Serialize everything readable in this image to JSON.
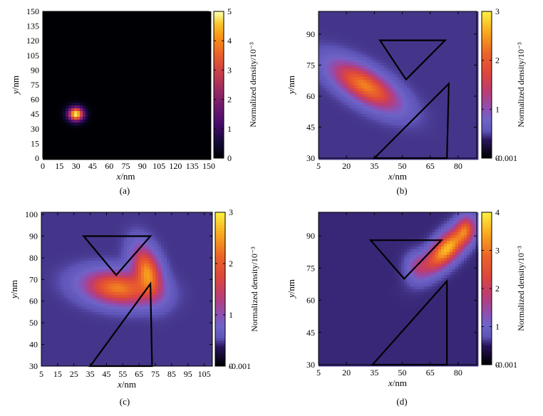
{
  "chart_data": [
    {
      "type": "heatmap",
      "caption": "(a)",
      "xlabel": "x/nm",
      "ylabel": "y/nm",
      "colorbar_label": "Normalized density/10⁻³",
      "xlim": [
        0,
        150
      ],
      "ylim": [
        0,
        150
      ],
      "xticks": [
        "0",
        "15",
        "30",
        "45",
        "60",
        "75",
        "90",
        "105",
        "120",
        "135",
        "150"
      ],
      "yticks": [
        "0",
        "15",
        "30",
        "45",
        "60",
        "75",
        "90",
        "105",
        "120",
        "135",
        "150"
      ],
      "clim": [
        0,
        5
      ],
      "cticks": [
        "0",
        "1",
        "2",
        "3",
        "4",
        "5"
      ],
      "background_value": 0,
      "blobs": [
        {
          "cx": 30,
          "cy": 45,
          "sx": 5,
          "sy": 5,
          "peak": 5
        }
      ],
      "obstacles": []
    },
    {
      "type": "heatmap",
      "caption": "(b)",
      "xlabel": "x/nm",
      "ylabel": "y/nm",
      "colorbar_label": "Normalized density/10⁻³",
      "xlim": [
        5,
        90
      ],
      "ylim": [
        30,
        101
      ],
      "xticks": [
        "5",
        "20",
        "35",
        "50",
        "65",
        "80"
      ],
      "yticks": [
        "30",
        "45",
        "60",
        "75",
        "90"
      ],
      "clim": [
        -0.001,
        3
      ],
      "cticks": [
        "-0.001",
        "0",
        "1",
        "2",
        "3"
      ],
      "background_value": 0.45,
      "blobs": [
        {
          "cx": 30,
          "cy": 65,
          "sx": 13,
          "sy": 5,
          "rot": -28,
          "peak": 1.9
        }
      ],
      "obstacles": [
        {
          "kind": "inverted-triangle",
          "points": [
            [
              38,
              87
            ],
            [
              73,
              87
            ],
            [
              52,
              68
            ]
          ]
        },
        {
          "kind": "wedge",
          "points": [
            [
              35,
              30
            ],
            [
              75,
              66
            ],
            [
              74,
              30
            ]
          ]
        }
      ]
    },
    {
      "type": "heatmap",
      "caption": "(c)",
      "xlabel": "x/nm",
      "ylabel": "y/nm",
      "colorbar_label": "Normalized density/10⁻³",
      "xlim": [
        5,
        110
      ],
      "ylim": [
        30,
        101
      ],
      "xticks": [
        "5",
        "15",
        "25",
        "35",
        "45",
        "55",
        "65",
        "75",
        "85",
        "95",
        "105"
      ],
      "yticks": [
        "30",
        "40",
        "50",
        "60",
        "70",
        "80",
        "90",
        "100"
      ],
      "clim": [
        -0.001,
        3
      ],
      "cticks": [
        "-0.001",
        "0",
        "1",
        "2",
        "3"
      ],
      "background_value": 0.45,
      "blobs": [
        {
          "cx": 52,
          "cy": 66,
          "sx": 14,
          "sy": 5,
          "rot": -5,
          "peak": 1.9
        },
        {
          "cx": 70,
          "cy": 74,
          "sx": 5,
          "sy": 8,
          "rot": 30,
          "peak": 1.9
        }
      ],
      "obstacles": [
        {
          "kind": "inverted-triangle",
          "points": [
            [
              31,
              90
            ],
            [
              72,
              90
            ],
            [
              51,
              72
            ]
          ]
        },
        {
          "kind": "wedge",
          "points": [
            [
              35,
              30
            ],
            [
              72,
              68
            ],
            [
              73,
              30
            ]
          ]
        }
      ]
    },
    {
      "type": "heatmap",
      "caption": "(d)",
      "xlabel": "x/nm",
      "ylabel": "y/nm",
      "colorbar_label": "Normalized density/10⁻³",
      "xlim": [
        5,
        90
      ],
      "ylim": [
        30,
        101
      ],
      "xticks": [
        "5",
        "20",
        "35",
        "50",
        "65",
        "80"
      ],
      "yticks": [
        "30",
        "45",
        "60",
        "75",
        "90"
      ],
      "clim": [
        -0.001,
        4
      ],
      "cticks": [
        "-0.001",
        "0",
        "1",
        "2",
        "3",
        "4"
      ],
      "background_value": 0.55,
      "blobs": [
        {
          "cx": 74,
          "cy": 84,
          "sx": 10,
          "sy": 4,
          "rot": 40,
          "peak": 3.1
        },
        {
          "cx": 84,
          "cy": 93,
          "sx": 3,
          "sy": 4,
          "peak": 1.3
        },
        {
          "cx": 58,
          "cy": 76,
          "sx": 4,
          "sy": 4,
          "peak": 0.8
        }
      ],
      "obstacles": [
        {
          "kind": "inverted-triangle",
          "points": [
            [
              33,
              88
            ],
            [
              71,
              88
            ],
            [
              51,
              70
            ]
          ]
        },
        {
          "kind": "wedge",
          "points": [
            [
              34,
              30
            ],
            [
              74,
              69
            ],
            [
              74,
              30
            ]
          ]
        }
      ]
    }
  ]
}
